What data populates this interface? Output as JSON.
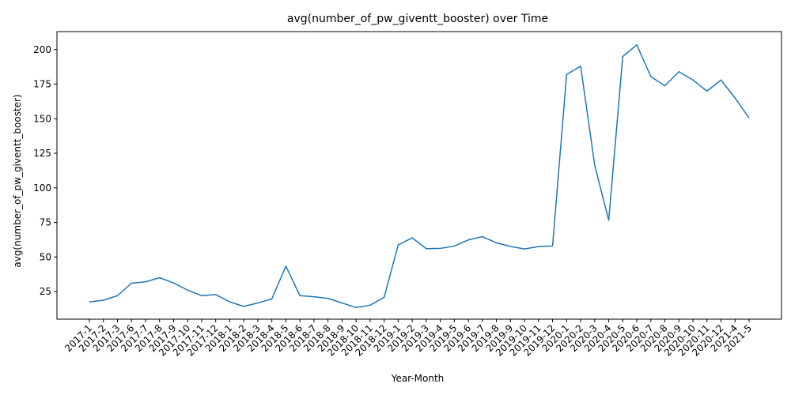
{
  "chart_data": {
    "type": "line",
    "title": "avg(number_of_pw_giventt_booster) over Time",
    "xlabel": "Year-Month",
    "ylabel": "avg(number_of_pw_giventt_booster)",
    "ylim": [
      5,
      213
    ],
    "yticks": [
      25,
      50,
      75,
      100,
      125,
      150,
      175,
      200
    ],
    "grid": false,
    "line_color": "#1f77b4",
    "categories": [
      "2017-1",
      "2017-2",
      "2017-3",
      "2017-6",
      "2017-7",
      "2017-8",
      "2017-9",
      "2017-10",
      "2017-11",
      "2017-12",
      "2018-1",
      "2018-2",
      "2018-3",
      "2018-4",
      "2018-5",
      "2018-6",
      "2018-7",
      "2018-8",
      "2018-9",
      "2018-10",
      "2018-11",
      "2018-12",
      "2019-1",
      "2019-2",
      "2019-3",
      "2019-4",
      "2019-5",
      "2019-6",
      "2019-7",
      "2019-8",
      "2019-9",
      "2019-10",
      "2019-11",
      "2019-12",
      "2020-1",
      "2020-2",
      "2020-3",
      "2020-4",
      "2020-5",
      "2020-6",
      "2020-7",
      "2020-8",
      "2020-9",
      "2020-10",
      "2020-11",
      "2020-12",
      "2021-4",
      "2021-5"
    ],
    "series": [
      {
        "values": [
          17.5,
          18.7,
          22,
          31,
          32,
          35,
          31.2,
          26,
          22,
          22.8,
          17.5,
          14.2,
          16.7,
          19.7,
          43.3,
          22,
          21.2,
          20,
          16.7,
          13.4,
          15.1,
          20.8,
          58.7,
          63.8,
          56,
          56.2,
          57.9,
          62.3,
          64.7,
          60.2,
          57.6,
          55.8,
          57.5,
          58,
          182,
          188,
          116.5,
          76.5,
          195,
          203.4,
          180.5,
          173.8,
          184,
          178,
          170,
          178,
          165,
          150.5
        ]
      }
    ]
  }
}
